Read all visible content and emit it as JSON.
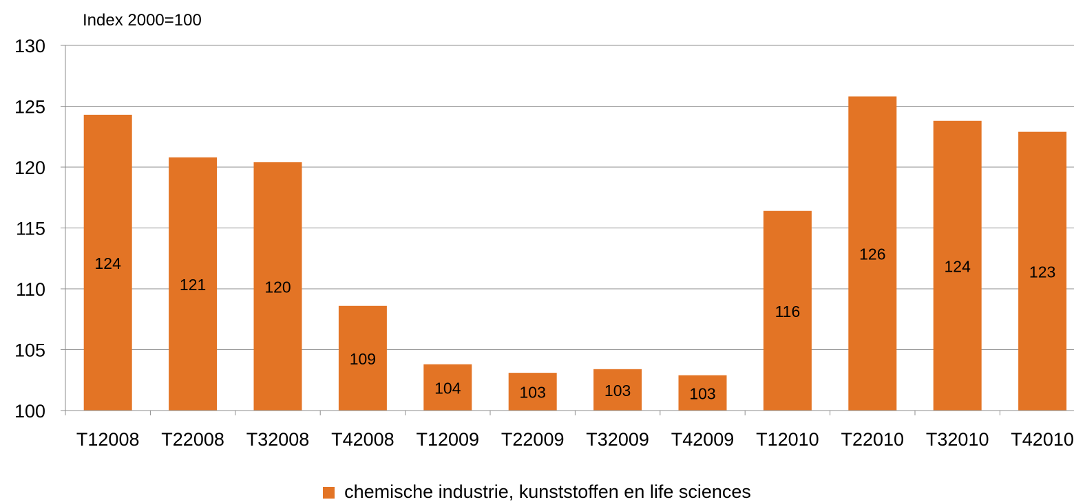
{
  "chart_data": {
    "type": "bar",
    "ylabel": "Index 2000=100",
    "categories": [
      "T12008",
      "T22008",
      "T32008",
      "T42008",
      "T12009",
      "T22009",
      "T32009",
      "T42009",
      "T12010",
      "T22010",
      "T32010",
      "T42010"
    ],
    "series": [
      {
        "name": "chemische industrie, kunststoffen en life sciences",
        "values": [
          124.3,
          120.8,
          120.4,
          108.6,
          103.8,
          103.1,
          103.4,
          102.9,
          116.4,
          125.8,
          123.8,
          122.9
        ],
        "labels": [
          "124",
          "121",
          "120",
          "109",
          "104",
          "103",
          "103",
          "103",
          "116",
          "126",
          "124",
          "123"
        ],
        "color": "#E37425"
      }
    ],
    "ylim": [
      100,
      130
    ],
    "yticks": [
      100,
      105,
      110,
      115,
      120,
      125,
      130
    ],
    "grid": true,
    "legend_position": "bottom"
  }
}
